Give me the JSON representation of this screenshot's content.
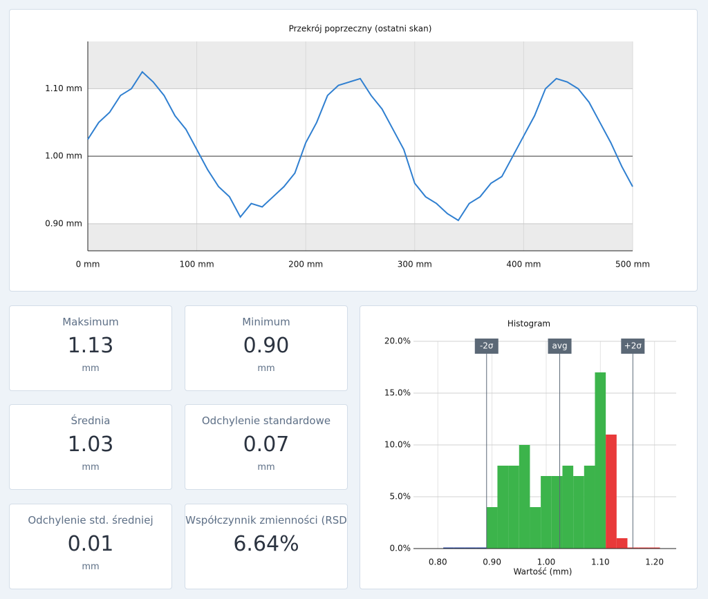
{
  "chart_data": [
    {
      "type": "line",
      "title": "Przekrój poprzeczny (ostatni skan)",
      "x": [
        0,
        10,
        20,
        30,
        40,
        50,
        60,
        70,
        80,
        90,
        100,
        110,
        120,
        130,
        140,
        150,
        160,
        170,
        180,
        190,
        200,
        210,
        220,
        230,
        240,
        250,
        260,
        270,
        280,
        290,
        300,
        310,
        320,
        330,
        340,
        350,
        360,
        370,
        380,
        390,
        400,
        410,
        420,
        430,
        440,
        450,
        460,
        470,
        480,
        490,
        500
      ],
      "series": [
        {
          "color": "#2f7fd0",
          "values": [
            1.025,
            1.05,
            1.065,
            1.09,
            1.1,
            1.125,
            1.11,
            1.09,
            1.06,
            1.04,
            1.01,
            0.98,
            0.955,
            0.94,
            0.91,
            0.93,
            0.925,
            0.94,
            0.955,
            0.975,
            1.02,
            1.05,
            1.09,
            1.105,
            1.11,
            1.115,
            1.09,
            1.07,
            1.04,
            1.01,
            0.96,
            0.94,
            0.93,
            0.915,
            0.905,
            0.93,
            0.94,
            0.96,
            0.97,
            1.0,
            1.03,
            1.06,
            1.1,
            1.115,
            1.11,
            1.1,
            1.08,
            1.05,
            1.02,
            0.985,
            0.955
          ]
        }
      ],
      "xlim": [
        0,
        500
      ],
      "xticks": [
        {
          "value": 0,
          "label": "0 mm"
        },
        {
          "value": 100,
          "label": "100 mm"
        },
        {
          "value": 200,
          "label": "200 mm"
        },
        {
          "value": 300,
          "label": "300 mm"
        },
        {
          "value": 400,
          "label": "400 mm"
        },
        {
          "value": 500,
          "label": "500 mm"
        }
      ],
      "ylim": [
        0.86,
        1.17
      ],
      "yticks": [
        {
          "value": 0.9,
          "label": "0.90 mm"
        },
        {
          "value": 1.0,
          "label": "1.00 mm"
        },
        {
          "value": 1.1,
          "label": "1.10 mm"
        }
      ],
      "grid": true
    },
    {
      "type": "histogram",
      "title": "Histogram",
      "x_label": "Wartość (mm)",
      "bins": [
        0.81,
        0.83,
        0.85,
        0.87,
        0.89,
        0.91,
        0.93,
        0.95,
        0.97,
        0.99,
        1.01,
        1.03,
        1.05,
        1.07,
        1.09,
        1.11,
        1.13,
        1.15,
        1.17,
        1.19,
        1.21
      ],
      "values": [
        0,
        0,
        0,
        0,
        4,
        8,
        8,
        10,
        4,
        7,
        7,
        8,
        7,
        8,
        17,
        11,
        1,
        0,
        0,
        0
      ],
      "colors": [
        "#1f3fa0",
        "#1f3fa0",
        "#1f3fa0",
        "#1f3fa0",
        "#3cb44b",
        "#3cb44b",
        "#3cb44b",
        "#3cb44b",
        "#3cb44b",
        "#3cb44b",
        "#3cb44b",
        "#3cb44b",
        "#3cb44b",
        "#3cb44b",
        "#3cb44b",
        "#e83a3a",
        "#e83a3a",
        "#e83a3a",
        "#e83a3a",
        "#e83a3a"
      ],
      "xlim": [
        0.755,
        1.24
      ],
      "xticks": [
        {
          "value": 0.8,
          "label": "0.80"
        },
        {
          "value": 0.9,
          "label": "0.90"
        },
        {
          "value": 1.0,
          "label": "1.00"
        },
        {
          "value": 1.1,
          "label": "1.10"
        },
        {
          "value": 1.2,
          "label": "1.20"
        }
      ],
      "ylim": [
        0,
        20
      ],
      "yticks": [
        {
          "value": 0,
          "label": "0.0%"
        },
        {
          "value": 5,
          "label": "5.0%"
        },
        {
          "value": 10,
          "label": "10.0%"
        },
        {
          "value": 15,
          "label": "15.0%"
        },
        {
          "value": 20,
          "label": "20.0%"
        }
      ],
      "markers": [
        {
          "value": 0.89,
          "label": "-2σ"
        },
        {
          "value": 1.025,
          "label": "avg"
        },
        {
          "value": 1.16,
          "label": "+2σ"
        }
      ],
      "grid": true
    }
  ],
  "cards": [
    {
      "label": "Maksimum",
      "value": "1.13",
      "unit": "mm"
    },
    {
      "label": "Minimum",
      "value": "0.90",
      "unit": "mm"
    },
    {
      "label": "Średnia",
      "value": "1.03",
      "unit": "mm"
    },
    {
      "label": "Odchylenie standardowe",
      "value": "0.07",
      "unit": "mm"
    },
    {
      "label": "Odchylenie std. średniej",
      "value": "0.01",
      "unit": "mm"
    },
    {
      "label": "Współczynnik zmienności (RSD",
      "value": "6.64%"
    }
  ]
}
